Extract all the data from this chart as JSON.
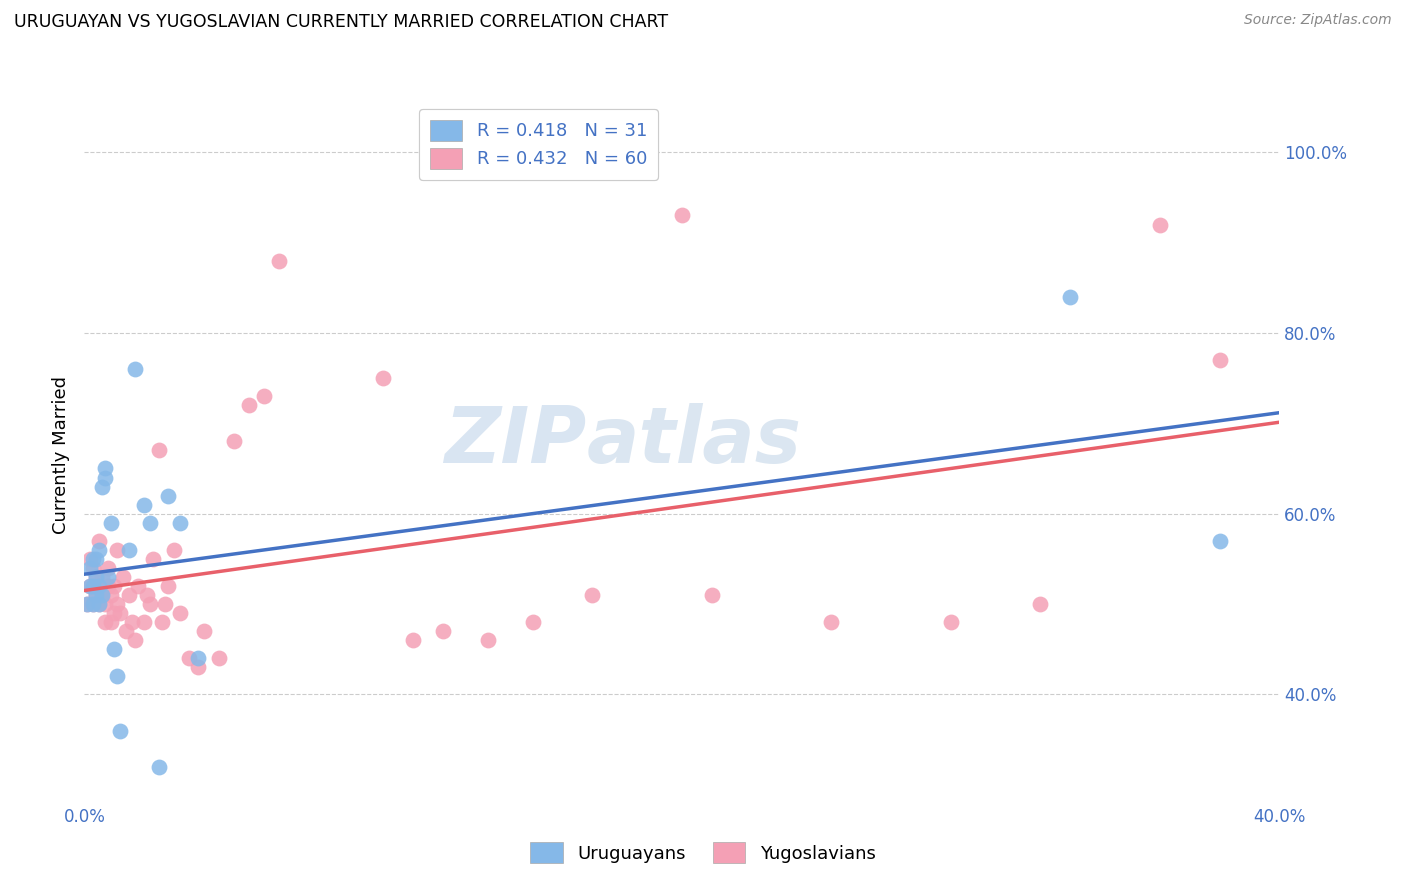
{
  "title": "URUGUAYAN VS YUGOSLAVIAN CURRENTLY MARRIED CORRELATION CHART",
  "source": "Source: ZipAtlas.com",
  "ylabel_label": "Currently Married",
  "x_min": 0.0,
  "x_max": 0.4,
  "y_min": 0.28,
  "y_max": 1.05,
  "x_ticks": [
    0.0,
    0.05,
    0.1,
    0.15,
    0.2,
    0.25,
    0.3,
    0.35,
    0.4
  ],
  "x_tick_labels": [
    "0.0%",
    "",
    "",
    "",
    "",
    "",
    "",
    "",
    "40.0%"
  ],
  "y_ticks": [
    0.4,
    0.6,
    0.8,
    1.0
  ],
  "y_tick_labels": [
    "40.0%",
    "60.0%",
    "80.0%",
    "100.0%"
  ],
  "uruguayan_R": 0.418,
  "uruguayan_N": 31,
  "yugoslavian_R": 0.432,
  "yugoslavian_N": 60,
  "uruguayan_color": "#85b8e8",
  "yugoslavian_color": "#f4a0b5",
  "uruguayan_line_color": "#4472c4",
  "yugoslavian_line_color": "#e8606a",
  "legend_label_uruguayan": "Uruguayans",
  "legend_label_yugoslavian": "Yugoslavians",
  "watermark_zip": "ZIP",
  "watermark_atlas": "atlas",
  "uruguayan_x": [
    0.001,
    0.002,
    0.002,
    0.003,
    0.003,
    0.003,
    0.004,
    0.004,
    0.005,
    0.005,
    0.005,
    0.006,
    0.006,
    0.007,
    0.007,
    0.008,
    0.009,
    0.01,
    0.011,
    0.012,
    0.015,
    0.017,
    0.02,
    0.022,
    0.025,
    0.028,
    0.032,
    0.038,
    0.33,
    0.38,
    0.004
  ],
  "uruguayan_y": [
    0.5,
    0.52,
    0.54,
    0.5,
    0.52,
    0.55,
    0.51,
    0.55,
    0.5,
    0.52,
    0.56,
    0.51,
    0.63,
    0.64,
    0.65,
    0.53,
    0.59,
    0.45,
    0.42,
    0.36,
    0.56,
    0.76,
    0.61,
    0.59,
    0.32,
    0.62,
    0.59,
    0.44,
    0.84,
    0.57,
    0.53
  ],
  "yugoslavian_x": [
    0.001,
    0.002,
    0.002,
    0.003,
    0.003,
    0.004,
    0.004,
    0.005,
    0.005,
    0.005,
    0.006,
    0.006,
    0.007,
    0.007,
    0.008,
    0.008,
    0.009,
    0.009,
    0.01,
    0.01,
    0.011,
    0.011,
    0.012,
    0.013,
    0.014,
    0.015,
    0.016,
    0.017,
    0.018,
    0.02,
    0.021,
    0.022,
    0.023,
    0.025,
    0.026,
    0.027,
    0.028,
    0.03,
    0.032,
    0.035,
    0.038,
    0.04,
    0.045,
    0.05,
    0.055,
    0.06,
    0.065,
    0.1,
    0.11,
    0.12,
    0.135,
    0.15,
    0.17,
    0.2,
    0.21,
    0.25,
    0.29,
    0.32,
    0.36,
    0.38
  ],
  "yugoslavian_y": [
    0.5,
    0.52,
    0.55,
    0.5,
    0.54,
    0.51,
    0.53,
    0.5,
    0.52,
    0.57,
    0.51,
    0.53,
    0.48,
    0.5,
    0.52,
    0.54,
    0.48,
    0.51,
    0.49,
    0.52,
    0.5,
    0.56,
    0.49,
    0.53,
    0.47,
    0.51,
    0.48,
    0.46,
    0.52,
    0.48,
    0.51,
    0.5,
    0.55,
    0.67,
    0.48,
    0.5,
    0.52,
    0.56,
    0.49,
    0.44,
    0.43,
    0.47,
    0.44,
    0.68,
    0.72,
    0.73,
    0.88,
    0.75,
    0.46,
    0.47,
    0.46,
    0.48,
    0.51,
    0.93,
    0.51,
    0.48,
    0.48,
    0.5,
    0.92,
    0.77
  ]
}
